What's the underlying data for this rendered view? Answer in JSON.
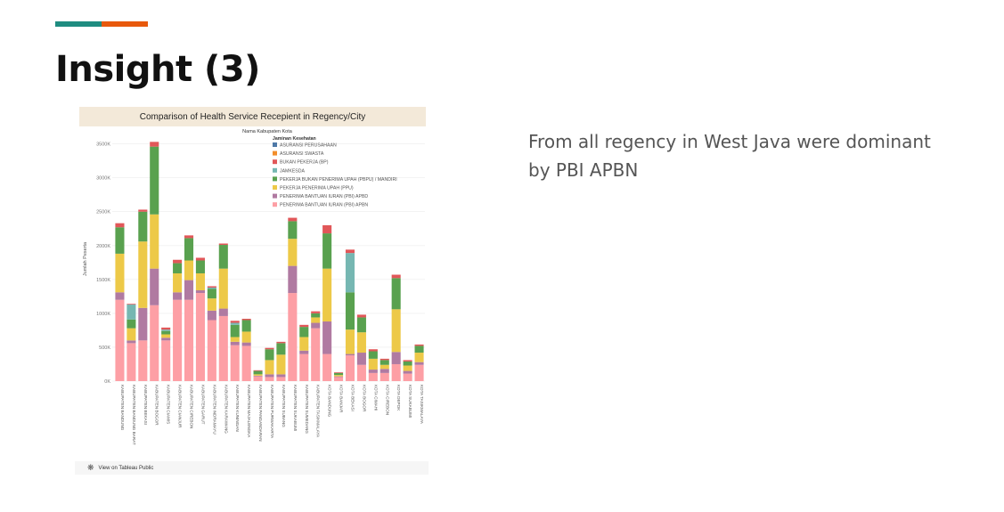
{
  "slide": {
    "title": "Insight (3)",
    "text": "From all regency in West Java were dominant by PBI APBN"
  },
  "embed": {
    "footer_label": "View on Tableau Public",
    "footer_icon": "tableau-logo-icon"
  },
  "colors": {
    "accent_teal": "#1f8c80",
    "accent_orange": "#e8590c",
    "header_bg": "#f3e9d9"
  },
  "chart_data": {
    "type": "bar",
    "stacked": true,
    "title": "Comparison of Health Service Recepient in Regency/City",
    "subtitle": "Nama Kabupaten Kota",
    "ylabel": "Jumlah Peserta",
    "ylim": [
      0,
      3600000
    ],
    "yticks": [
      0,
      500000,
      1000000,
      1500000,
      2000000,
      2500000,
      3000000,
      3500000
    ],
    "ytick_labels": [
      "0K",
      "500K",
      "1000K",
      "1500K",
      "2000K",
      "2500K",
      "3000K",
      "3500K"
    ],
    "grid": true,
    "legend_title": "Jaminan Kesehatan",
    "legend_position": "top-right",
    "categories": [
      "KABUPATEN BANDUNG",
      "KABUPATEN BANDUNG BARAT",
      "KABUPATEN BEKASI",
      "KABUPATEN BOGOR",
      "KABUPATEN CIAMIS",
      "KABUPATEN CIANJUR",
      "KABUPATEN CIREBON",
      "KABUPATEN GARUT",
      "KABUPATEN INDRAMAYU",
      "KABUPATEN KARAWANG",
      "KABUPATEN KUNINGAN",
      "KABUPATEN MAJALENGKA",
      "KABUPATEN PANGANDARAN",
      "KABUPATEN PURWAKARTA",
      "KABUPATEN SUBANG",
      "KABUPATEN SUKABUMI",
      "KABUPATEN SUMEDANG",
      "KABUPATEN TASIKMALAYA",
      "KOTA BANDUNG",
      "KOTA BANJAR",
      "KOTA BEKASI",
      "KOTA BOGOR",
      "KOTA CIMAHI",
      "KOTA CIREBON",
      "KOTA DEPOK",
      "KOTA SUKABUMI",
      "KOTA TASIKMALAYA"
    ],
    "series": [
      {
        "name": "PENERIMA BANTUAN IURAN (PBI) APBN",
        "color": "#fd9fa5",
        "values": [
          1200000,
          560000,
          600000,
          1120000,
          600000,
          1200000,
          1200000,
          1300000,
          900000,
          960000,
          530000,
          520000,
          70000,
          60000,
          60000,
          1300000,
          400000,
          780000,
          400000,
          60000,
          380000,
          240000,
          120000,
          120000,
          250000,
          110000,
          240000
        ]
      },
      {
        "name": "PENERIMA BANTUAN IURAN (PBI) APBD",
        "color": "#b07aa1",
        "values": [
          110000,
          40000,
          480000,
          540000,
          40000,
          110000,
          290000,
          40000,
          140000,
          110000,
          50000,
          50000,
          10000,
          40000,
          40000,
          400000,
          50000,
          80000,
          480000,
          10000,
          20000,
          180000,
          50000,
          60000,
          180000,
          40000,
          40000
        ]
      },
      {
        "name": "PEKERJA PENERIMA UPAH (PPU)",
        "color": "#edc948",
        "values": [
          570000,
          180000,
          980000,
          800000,
          50000,
          280000,
          290000,
          250000,
          180000,
          590000,
          70000,
          160000,
          20000,
          210000,
          290000,
          400000,
          200000,
          80000,
          780000,
          20000,
          360000,
          300000,
          160000,
          60000,
          630000,
          80000,
          140000
        ]
      },
      {
        "name": "PEKERJA BUKAN PENERIMA UPAH (PBPU) / MANDIRI",
        "color": "#59a14f",
        "values": [
          390000,
          130000,
          440000,
          1000000,
          50000,
          150000,
          330000,
          190000,
          140000,
          350000,
          180000,
          170000,
          50000,
          160000,
          170000,
          260000,
          150000,
          60000,
          520000,
          30000,
          550000,
          220000,
          110000,
          70000,
          460000,
          60000,
          100000
        ]
      },
      {
        "name": "JAMKESDA",
        "color": "#76b7b2",
        "values": [
          0,
          220000,
          0,
          0,
          20000,
          0,
          0,
          0,
          20000,
          0,
          30000,
          0,
          0,
          0,
          0,
          0,
          0,
          0,
          0,
          0,
          580000,
          0,
          0,
          0,
          0,
          0,
          0
        ]
      },
      {
        "name": "BUKAN PEKERJA (BP)",
        "color": "#e15759",
        "values": [
          60000,
          10000,
          30000,
          70000,
          30000,
          50000,
          40000,
          40000,
          20000,
          20000,
          30000,
          20000,
          10000,
          20000,
          20000,
          50000,
          30000,
          30000,
          120000,
          10000,
          50000,
          40000,
          30000,
          20000,
          50000,
          20000,
          20000
        ]
      },
      {
        "name": "ASURANSI SWASTA",
        "color": "#f28e2b",
        "values": [
          0,
          0,
          0,
          0,
          0,
          0,
          0,
          0,
          0,
          0,
          0,
          0,
          0,
          0,
          0,
          0,
          0,
          0,
          0,
          0,
          0,
          0,
          0,
          0,
          0,
          0,
          0
        ]
      },
      {
        "name": "ASURANSI PERUSAHAAN",
        "color": "#4e79a7",
        "values": [
          0,
          0,
          0,
          0,
          0,
          0,
          0,
          0,
          0,
          0,
          0,
          0,
          0,
          0,
          0,
          0,
          0,
          0,
          0,
          0,
          0,
          0,
          0,
          0,
          0,
          0,
          0
        ]
      }
    ],
    "legend_order": [
      "ASURANSI PERUSAHAAN",
      "ASURANSI SWASTA",
      "BUKAN PEKERJA (BP)",
      "JAMKESDA",
      "PEKERJA BUKAN PENERIMA UPAH (PBPU) / MANDIRI",
      "PEKERJA PENERIMA UPAH (PPU)",
      "PENERIMA BANTUAN IURAN (PBI) APBD",
      "PENERIMA BANTUAN IURAN (PBI) APBN"
    ]
  }
}
